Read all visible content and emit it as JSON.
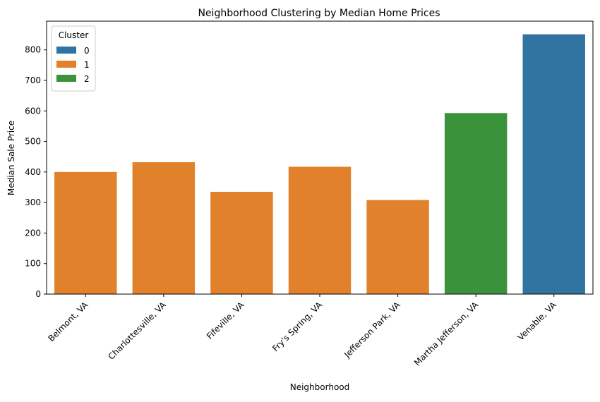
{
  "chart_data": {
    "type": "bar",
    "title": "Neighborhood Clustering by Median Home Prices",
    "xlabel": "Neighborhood",
    "ylabel": "Median Sale Price",
    "categories": [
      "Belmont, VA",
      "Charlottesville, VA",
      "Fifeville, VA",
      "Fry's Spring, VA",
      "Jefferson Park, VA",
      "Martha Jefferson, VA",
      "Venable, VA"
    ],
    "values": [
      400,
      432,
      335,
      417,
      308,
      593,
      851
    ],
    "clusters": [
      1,
      1,
      1,
      1,
      1,
      2,
      0
    ],
    "ylim": [
      0,
      894
    ],
    "yticks": [
      0,
      100,
      200,
      300,
      400,
      500,
      600,
      700,
      800
    ],
    "grid": false,
    "legend": {
      "title": "Cluster",
      "placement": "top-left",
      "entries": [
        {
          "label": "0",
          "color": "#3274a1"
        },
        {
          "label": "1",
          "color": "#e1812c"
        },
        {
          "label": "2",
          "color": "#3a923a"
        }
      ]
    },
    "colors": {
      "0": "#3274a1",
      "1": "#e1812c",
      "2": "#3a923a"
    }
  }
}
